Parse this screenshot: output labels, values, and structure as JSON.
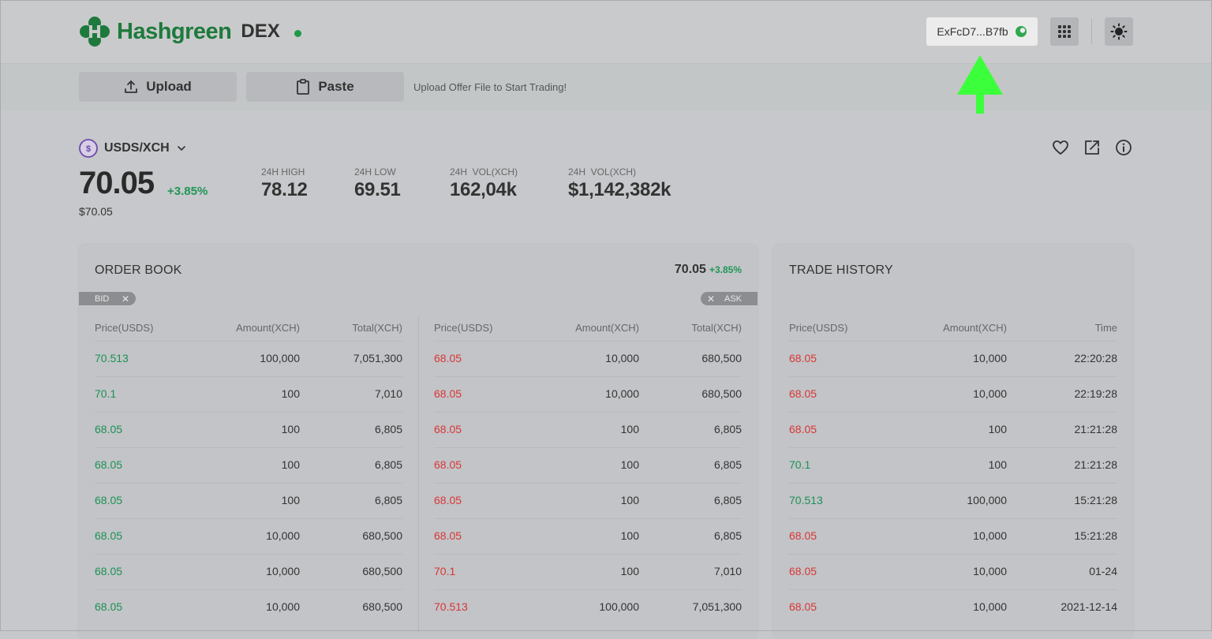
{
  "header": {
    "brand": "Hashgreen",
    "brand_suffix": "DEX",
    "wallet_address": "ExFcD7...B7fb",
    "apps_icon": "grid-icon",
    "theme_icon": "sun-icon"
  },
  "upload_bar": {
    "upload_label": "Upload",
    "paste_label": "Paste",
    "hint": "Upload Offer File to Start Trading!"
  },
  "market": {
    "pair": "USDS/XCH",
    "price": "70.05",
    "change": "+3.85%",
    "price_usd": "$70.05",
    "stats": [
      {
        "label": "24H HIGH",
        "value": "78.12"
      },
      {
        "label": "24H LOW",
        "value": "69.51"
      },
      {
        "label": "24H  VOL(XCH)",
        "value": "162,04k"
      },
      {
        "label": "24H  VOL(XCH)",
        "value": "$1,142,382k"
      }
    ]
  },
  "order_book": {
    "title": "ORDER BOOK",
    "price": "70.05",
    "change": "+3.85%",
    "bid_chip": "BID",
    "ask_chip": "ASK",
    "columns": [
      "Price(USDS)",
      "Amount(XCH)",
      "Total(XCH)"
    ],
    "bids": [
      [
        "70.513",
        "100,000",
        "7,051,300"
      ],
      [
        "70.1",
        "100",
        "7,010"
      ],
      [
        "68.05",
        "100",
        "6,805"
      ],
      [
        "68.05",
        "100",
        "6,805"
      ],
      [
        "68.05",
        "100",
        "6,805"
      ],
      [
        "68.05",
        "10,000",
        "680,500"
      ],
      [
        "68.05",
        "10,000",
        "680,500"
      ],
      [
        "68.05",
        "10,000",
        "680,500"
      ]
    ],
    "asks": [
      [
        "68.05",
        "10,000",
        "680,500"
      ],
      [
        "68.05",
        "10,000",
        "680,500"
      ],
      [
        "68.05",
        "100",
        "6,805"
      ],
      [
        "68.05",
        "100",
        "6,805"
      ],
      [
        "68.05",
        "100",
        "6,805"
      ],
      [
        "68.05",
        "100",
        "6,805"
      ],
      [
        "70.1",
        "100",
        "7,010"
      ],
      [
        "70.513",
        "100,000",
        "7,051,300"
      ]
    ]
  },
  "trade_history": {
    "title": "TRADE HISTORY",
    "columns": [
      "Price(USDS)",
      "Amount(XCH)",
      "Time"
    ],
    "rows": [
      {
        "price": "68.05",
        "amount": "10,000",
        "time": "22:20:28",
        "side": "sell"
      },
      {
        "price": "68.05",
        "amount": "10,000",
        "time": "22:19:28",
        "side": "sell"
      },
      {
        "price": "68.05",
        "amount": "100",
        "time": "21:21:28",
        "side": "sell"
      },
      {
        "price": "70.1",
        "amount": "100",
        "time": "21:21:28",
        "side": "buy"
      },
      {
        "price": "70.513",
        "amount": "100,000",
        "time": "15:21:28",
        "side": "buy"
      },
      {
        "price": "68.05",
        "amount": "10,000",
        "time": "15:21:28",
        "side": "sell"
      },
      {
        "price": "68.05",
        "amount": "10,000",
        "time": "01-24",
        "side": "sell"
      },
      {
        "price": "68.05",
        "amount": "10,000",
        "time": "2021-12-14",
        "side": "sell"
      }
    ]
  },
  "colors": {
    "brand_green": "#1d7a3c",
    "bid_green": "#1c9155",
    "ask_red": "#d93636",
    "annotation_arrow": "#3cff3c"
  }
}
